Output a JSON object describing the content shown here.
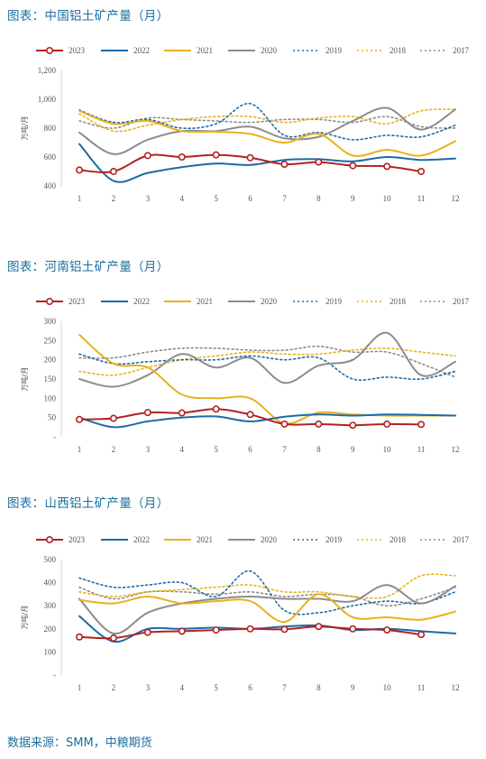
{
  "page": {
    "source_text": "数据来源：SMM，中粮期货"
  },
  "series_styles": {
    "2023": {
      "color": "#b22222",
      "dash": "",
      "marker": true,
      "width": 2
    },
    "2022": {
      "color": "#1f6aa5",
      "dash": "",
      "marker": false,
      "width": 2
    },
    "2021": {
      "color": "#e8b21a",
      "dash": "",
      "marker": false,
      "width": 2
    },
    "2020": {
      "color": "#8c8c8c",
      "dash": "",
      "marker": false,
      "width": 2
    },
    "2019": {
      "color": "#1f6aa5",
      "dash": "2,3",
      "marker": false,
      "width": 1.6
    },
    "2018": {
      "color": "#e8b21a",
      "dash": "2,3",
      "marker": false,
      "width": 1.6
    },
    "2017": {
      "color": "#8c8c8c",
      "dash": "2,3",
      "marker": false,
      "width": 1.6
    }
  },
  "chart_data": [
    {
      "type": "line",
      "title": "图表：中国铝土矿产量（月）",
      "ylabel": "万吨/月",
      "xlabel": "",
      "x": [
        1,
        2,
        3,
        4,
        5,
        6,
        7,
        8,
        9,
        10,
        11,
        12
      ],
      "ylim": [
        400,
        1200
      ],
      "yticks": [
        400,
        600,
        800,
        1000,
        1200
      ],
      "ytick_labels": [
        "400",
        "600",
        "800",
        "1,000",
        "1,200"
      ],
      "grid": false,
      "legend_position": "top",
      "series": [
        {
          "name": "2023",
          "values": [
            510,
            500,
            610,
            600,
            615,
            595,
            550,
            565,
            540,
            535,
            500,
            null
          ]
        },
        {
          "name": "2022",
          "values": [
            690,
            435,
            490,
            530,
            555,
            545,
            580,
            585,
            570,
            600,
            580,
            590
          ]
        },
        {
          "name": "2021",
          "values": [
            920,
            830,
            850,
            780,
            775,
            760,
            700,
            760,
            610,
            650,
            610,
            710
          ]
        },
        {
          "name": "2020",
          "values": [
            770,
            620,
            720,
            780,
            780,
            810,
            730,
            740,
            850,
            940,
            790,
            930
          ]
        },
        {
          "name": "2019",
          "values": [
            925,
            840,
            860,
            800,
            830,
            970,
            750,
            770,
            720,
            750,
            740,
            820
          ]
        },
        {
          "name": "2018",
          "values": [
            900,
            780,
            820,
            860,
            880,
            880,
            840,
            870,
            880,
            830,
            920,
            930
          ]
        },
        {
          "name": "2017",
          "values": [
            850,
            800,
            870,
            860,
            850,
            840,
            860,
            860,
            840,
            880,
            810,
            800
          ]
        }
      ]
    },
    {
      "type": "line",
      "title": "图表：河南铝土矿产量（月）",
      "ylabel": "万吨/月",
      "xlabel": "",
      "x": [
        1,
        2,
        3,
        4,
        5,
        6,
        7,
        8,
        9,
        10,
        11,
        12
      ],
      "ylim": [
        0,
        300
      ],
      "yticks": [
        0,
        50,
        100,
        150,
        200,
        250,
        300
      ],
      "ytick_labels": [
        "-",
        "50",
        "100",
        "150",
        "200",
        "250",
        "300"
      ],
      "grid": false,
      "legend_position": "top",
      "series": [
        {
          "name": "2023",
          "values": [
            45,
            48,
            63,
            62,
            72,
            58,
            33,
            33,
            30,
            33,
            32,
            null
          ]
        },
        {
          "name": "2022",
          "values": [
            50,
            25,
            40,
            50,
            53,
            40,
            52,
            58,
            55,
            58,
            57,
            55
          ]
        },
        {
          "name": "2021",
          "values": [
            265,
            190,
            180,
            110,
            100,
            100,
            35,
            63,
            58,
            55,
            55,
            55
          ]
        },
        {
          "name": "2020",
          "values": [
            150,
            130,
            160,
            215,
            180,
            205,
            140,
            185,
            200,
            270,
            160,
            195
          ]
        },
        {
          "name": "2019",
          "values": [
            215,
            190,
            195,
            200,
            200,
            210,
            200,
            205,
            150,
            155,
            150,
            170
          ]
        },
        {
          "name": "2018",
          "values": [
            170,
            160,
            180,
            200,
            210,
            220,
            215,
            215,
            225,
            230,
            220,
            210
          ]
        },
        {
          "name": "2017",
          "values": [
            205,
            205,
            220,
            230,
            230,
            225,
            225,
            235,
            220,
            220,
            190,
            155
          ]
        }
      ]
    },
    {
      "type": "line",
      "title": "图表：山西铝土矿产量（月）",
      "ylabel": "万吨/月",
      "xlabel": "",
      "x": [
        1,
        2,
        3,
        4,
        5,
        6,
        7,
        8,
        9,
        10,
        11,
        12
      ],
      "ylim": [
        0,
        500
      ],
      "yticks": [
        0,
        100,
        200,
        300,
        400,
        500
      ],
      "ytick_labels": [
        "-",
        "100",
        "200",
        "300",
        "400",
        "500"
      ],
      "grid": false,
      "legend_position": "top",
      "series": [
        {
          "name": "2023",
          "values": [
            165,
            160,
            185,
            190,
            195,
            200,
            198,
            210,
            200,
            195,
            175,
            null
          ]
        },
        {
          "name": "2022",
          "values": [
            255,
            145,
            200,
            200,
            205,
            200,
            210,
            215,
            195,
            200,
            190,
            180
          ]
        },
        {
          "name": "2021",
          "values": [
            325,
            310,
            340,
            310,
            320,
            320,
            230,
            350,
            250,
            250,
            240,
            275
          ]
        },
        {
          "name": "2020",
          "values": [
            330,
            180,
            270,
            310,
            330,
            340,
            330,
            330,
            320,
            390,
            310,
            385
          ]
        },
        {
          "name": "2019",
          "values": [
            420,
            380,
            390,
            400,
            340,
            450,
            280,
            270,
            300,
            320,
            310,
            360
          ]
        },
        {
          "name": "2018",
          "values": [
            360,
            340,
            360,
            370,
            380,
            390,
            360,
            360,
            340,
            340,
            430,
            430
          ]
        },
        {
          "name": "2017",
          "values": [
            380,
            330,
            360,
            360,
            350,
            360,
            340,
            350,
            340,
            300,
            330,
            380
          ]
        }
      ]
    }
  ]
}
